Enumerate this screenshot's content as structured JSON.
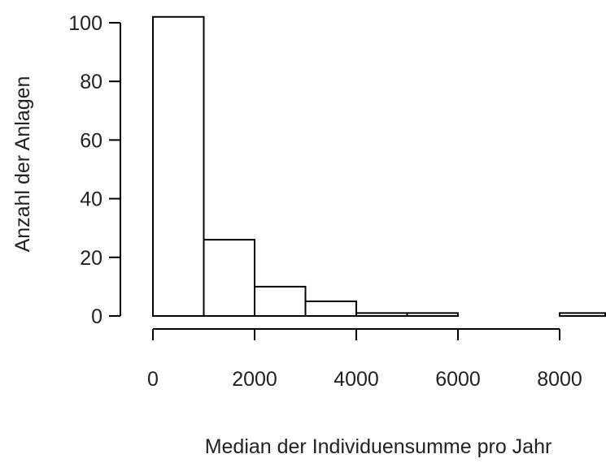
{
  "chart_data": {
    "type": "bar",
    "subtype": "histogram",
    "xlabel": "Median der Individuensumme pro Jahr",
    "ylabel": "Anzahl der Anlagen",
    "bins": [
      {
        "from": 0,
        "to": 1000,
        "count": 102
      },
      {
        "from": 1000,
        "to": 2000,
        "count": 26
      },
      {
        "from": 2000,
        "to": 3000,
        "count": 10
      },
      {
        "from": 3000,
        "to": 4000,
        "count": 5
      },
      {
        "from": 4000,
        "to": 5000,
        "count": 1
      },
      {
        "from": 5000,
        "to": 6000,
        "count": 1
      },
      {
        "from": 6000,
        "to": 7000,
        "count": 0
      },
      {
        "from": 7000,
        "to": 8000,
        "count": 0
      },
      {
        "from": 8000,
        "to": 9000,
        "count": 1
      }
    ],
    "x_ticks": [
      0,
      2000,
      4000,
      6000,
      8000
    ],
    "x_tick_labels": [
      "0",
      "2000",
      "4000",
      "6000",
      "8000"
    ],
    "y_ticks": [
      0,
      20,
      40,
      60,
      80,
      100
    ],
    "y_tick_labels": [
      "0",
      "20",
      "40",
      "60",
      "80",
      "100"
    ],
    "xlim": [
      0,
      9000
    ],
    "ylim": [
      0,
      100
    ],
    "bar_fill": "#ffffff",
    "bar_stroke": "#000000",
    "grid": false
  }
}
